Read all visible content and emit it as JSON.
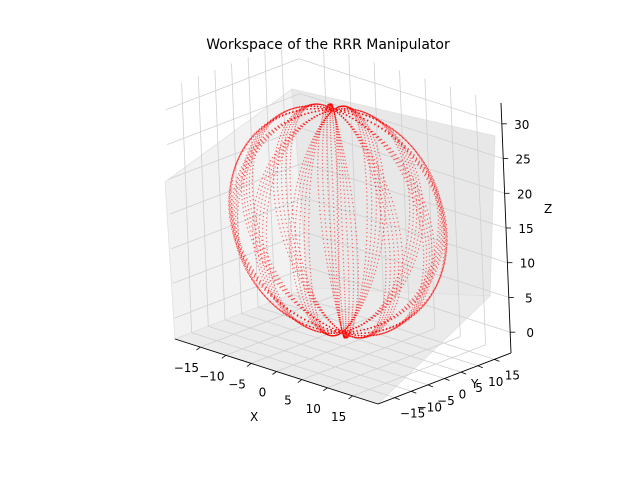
{
  "chart_data": {
    "type": "scatter",
    "projection": "3d",
    "title": "Workspace of the RRR Manipulator",
    "xlabel": "X",
    "ylabel": "Y",
    "zlabel": "Z",
    "xlim": [
      -20,
      20
    ],
    "ylim": [
      -20,
      20
    ],
    "zlim": [
      -3,
      33
    ],
    "x_ticks": [
      "−15",
      "−10",
      "−5",
      "0",
      "5",
      "10",
      "15"
    ],
    "y_ticks": [
      "−15",
      "−10",
      "−5",
      "0",
      "5",
      "10",
      "15"
    ],
    "z_ticks": [
      "0",
      "5",
      "10",
      "15",
      "20",
      "25",
      "30"
    ],
    "grid": true,
    "series": [
      {
        "color": "#ff0000",
        "marker": "point",
        "description_shape": "ellipsoidal lobes (torus-like point cloud)",
        "center": [
          0,
          0,
          15
        ],
        "radius_xy": 18,
        "radius_z": 16,
        "meridians": 14
      }
    ]
  }
}
